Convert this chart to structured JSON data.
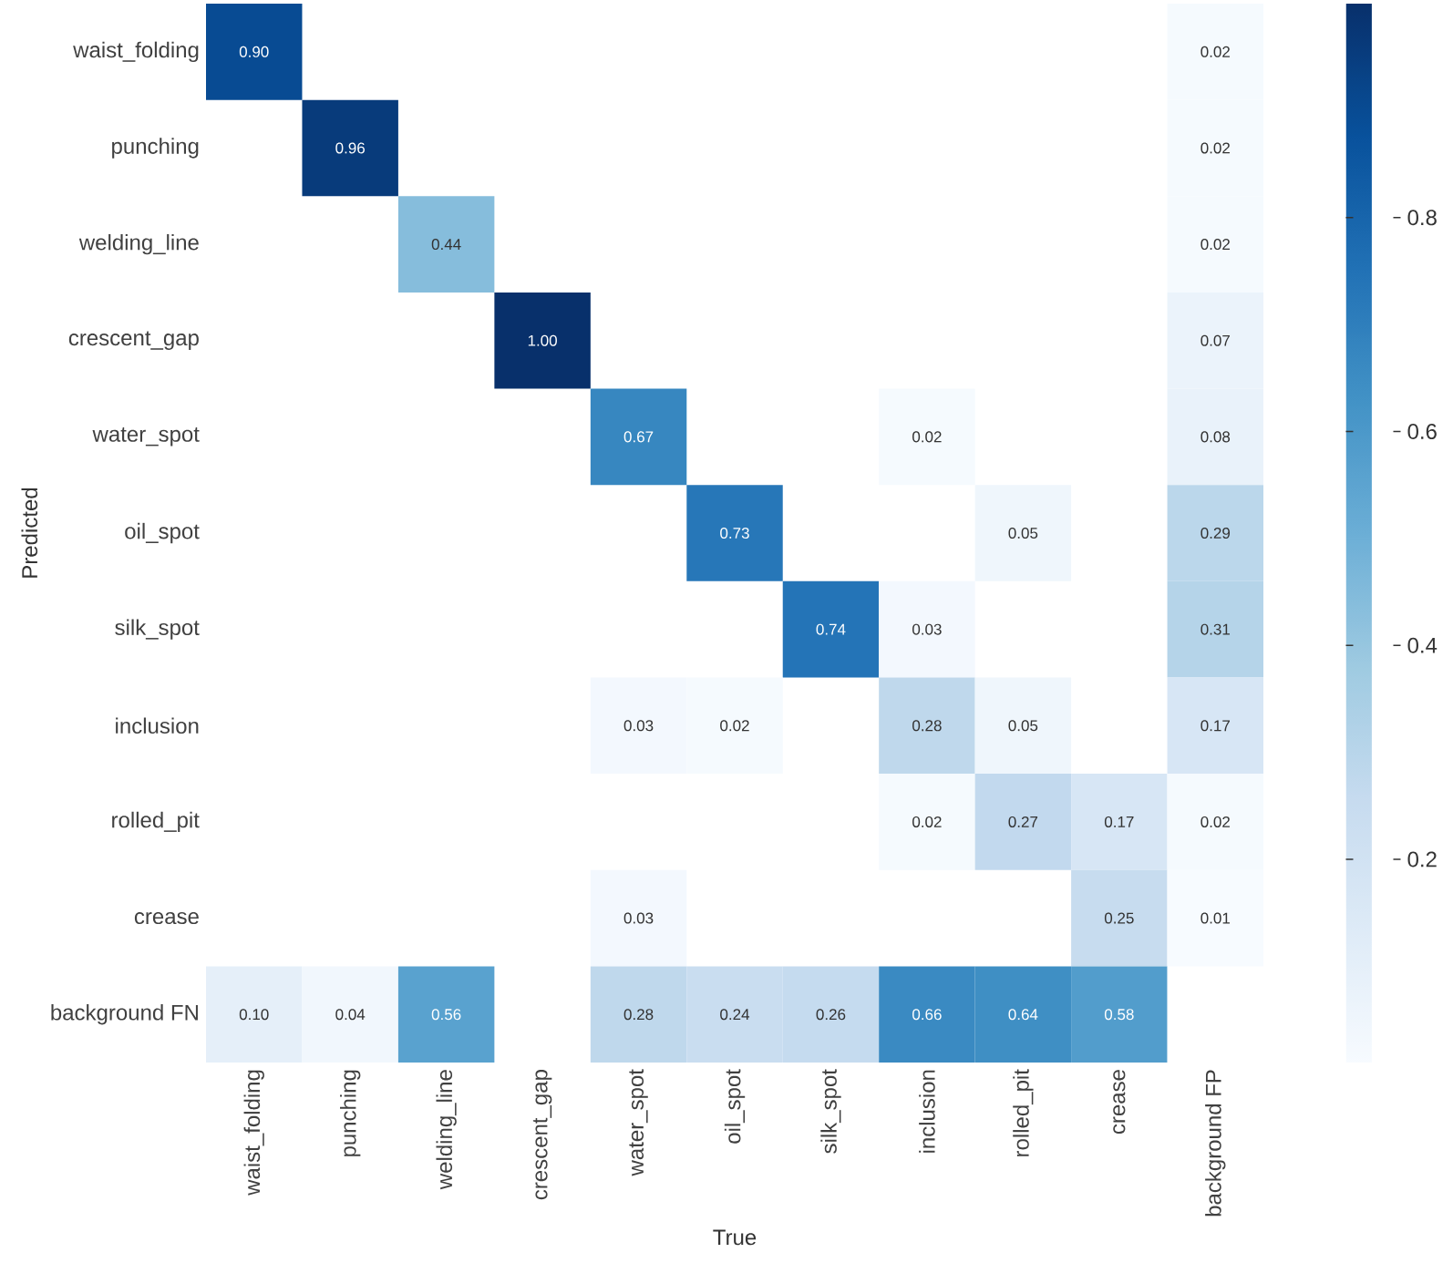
{
  "chart_data": {
    "type": "heatmap",
    "xlabel": "True",
    "ylabel": "Predicted",
    "categories": [
      "waist_folding",
      "punching",
      "welding_line",
      "crescent_gap",
      "water_spot",
      "oil_spot",
      "silk_spot",
      "inclusion",
      "rolled_pit",
      "crease",
      "background FP"
    ],
    "y_categories": [
      "waist_folding",
      "punching",
      "welding_line",
      "crescent_gap",
      "water_spot",
      "oil_spot",
      "silk_spot",
      "inclusion",
      "rolled_pit",
      "crease",
      "background FN"
    ],
    "cells": [
      [
        0.9,
        null,
        null,
        null,
        null,
        null,
        null,
        null,
        null,
        null,
        0.02
      ],
      [
        null,
        0.96,
        null,
        null,
        null,
        null,
        null,
        null,
        null,
        null,
        0.02
      ],
      [
        null,
        null,
        0.44,
        null,
        null,
        null,
        null,
        null,
        null,
        null,
        0.02
      ],
      [
        null,
        null,
        null,
        1.0,
        null,
        null,
        null,
        null,
        null,
        null,
        0.07
      ],
      [
        null,
        null,
        null,
        null,
        0.67,
        null,
        null,
        0.02,
        null,
        null,
        0.08
      ],
      [
        null,
        null,
        null,
        null,
        null,
        0.73,
        null,
        null,
        0.05,
        null,
        0.29
      ],
      [
        null,
        null,
        null,
        null,
        null,
        null,
        0.74,
        0.03,
        null,
        null,
        0.31
      ],
      [
        null,
        null,
        null,
        null,
        0.03,
        0.02,
        null,
        0.28,
        0.05,
        null,
        0.17
      ],
      [
        null,
        null,
        null,
        null,
        null,
        null,
        null,
        0.02,
        0.27,
        0.17,
        0.02
      ],
      [
        null,
        null,
        null,
        null,
        0.03,
        null,
        null,
        null,
        null,
        0.25,
        0.01
      ],
      [
        0.1,
        0.04,
        0.56,
        null,
        0.28,
        0.24,
        0.26,
        0.66,
        0.64,
        0.58,
        null
      ]
    ],
    "cell_labels": [
      [
        "0.90",
        null,
        null,
        null,
        null,
        null,
        null,
        null,
        null,
        null,
        "0.02"
      ],
      [
        null,
        "0.96",
        null,
        null,
        null,
        null,
        null,
        null,
        null,
        null,
        "0.02"
      ],
      [
        null,
        null,
        "0.44",
        null,
        null,
        null,
        null,
        null,
        null,
        null,
        "0.02"
      ],
      [
        null,
        null,
        null,
        "1.00",
        null,
        null,
        null,
        null,
        null,
        null,
        "0.07"
      ],
      [
        null,
        null,
        null,
        null,
        "0.67",
        null,
        null,
        "0.02",
        null,
        null,
        "0.08"
      ],
      [
        null,
        null,
        null,
        null,
        null,
        "0.73",
        null,
        null,
        "0.05",
        null,
        "0.29"
      ],
      [
        null,
        null,
        null,
        null,
        null,
        null,
        "0.74",
        "0.03",
        null,
        null,
        "0.31"
      ],
      [
        null,
        null,
        null,
        null,
        "0.03",
        "0.02",
        null,
        "0.28",
        "0.05",
        null,
        "0.17"
      ],
      [
        null,
        null,
        null,
        null,
        null,
        null,
        null,
        "0.02",
        "0.27",
        "0.17",
        "0.02"
      ],
      [
        null,
        null,
        null,
        null,
        "0.03",
        null,
        null,
        null,
        null,
        "0.25",
        "0.01"
      ],
      [
        "0.10",
        "0.04",
        "0.56",
        null,
        "0.28",
        "0.24",
        "0.26",
        "0.66",
        "0.64",
        "0.58",
        null
      ]
    ],
    "clim": [
      0.01,
      1.0
    ],
    "cticks": [
      0.2,
      0.4,
      0.6,
      0.8
    ]
  }
}
